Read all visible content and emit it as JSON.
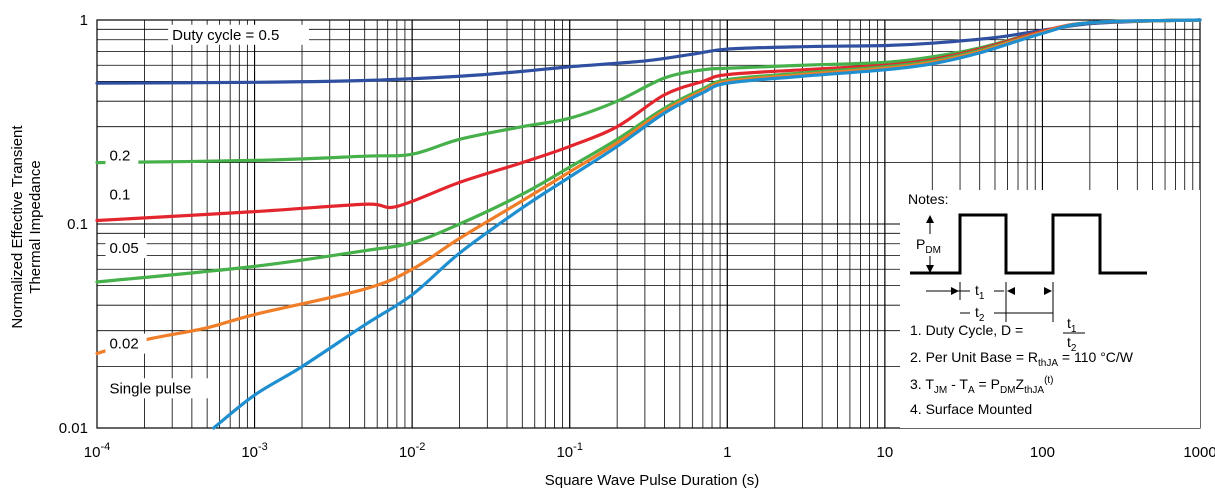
{
  "chart_data": {
    "type": "line",
    "xscale": "log",
    "yscale": "log",
    "xlim": [
      0.0001,
      1000
    ],
    "ylim": [
      0.01,
      1
    ],
    "grid": true,
    "xlabel": "Square Wave Pulse Duration (s)",
    "ylabel_lines": [
      "Normalized Effective Transient",
      "Thermal Impedance"
    ],
    "x_ticks": [
      {
        "value": 0.0001,
        "base": "10",
        "exp": "-4"
      },
      {
        "value": 0.001,
        "base": "10",
        "exp": "-3"
      },
      {
        "value": 0.01,
        "base": "10",
        "exp": "-2"
      },
      {
        "value": 0.1,
        "base": "10",
        "exp": "-1"
      },
      {
        "value": 1,
        "base": "1",
        "exp": ""
      },
      {
        "value": 10,
        "base": "10",
        "exp": ""
      },
      {
        "value": 100,
        "base": "100",
        "exp": ""
      },
      {
        "value": 1000,
        "base": "1000",
        "exp": ""
      }
    ],
    "y_ticks": [
      {
        "value": 1,
        "label": "1"
      },
      {
        "value": 0.1,
        "label": "0.1"
      },
      {
        "value": 0.01,
        "label": "0.01"
      }
    ],
    "series": [
      {
        "name": "Duty cycle = 0.5",
        "color": "#2f4fa0",
        "label_at": {
          "x": 0.0003,
          "y": 0.8
        },
        "points": [
          [
            0.0001,
            0.49
          ],
          [
            0.001,
            0.495
          ],
          [
            0.005,
            0.505
          ],
          [
            0.02,
            0.53
          ],
          [
            0.05,
            0.56
          ],
          [
            0.1,
            0.59
          ],
          [
            0.3,
            0.63
          ],
          [
            0.6,
            0.68
          ],
          [
            1,
            0.72
          ],
          [
            3,
            0.74
          ],
          [
            10,
            0.75
          ],
          [
            20,
            0.77
          ],
          [
            50,
            0.82
          ],
          [
            100,
            0.89
          ],
          [
            200,
            0.96
          ],
          [
            500,
            0.99
          ],
          [
            1000,
            1.0
          ]
        ]
      },
      {
        "name": "0.2",
        "color": "#46b04a",
        "label_at": {
          "x": 0.00012,
          "y": 0.205
        },
        "points": [
          [
            0.0001,
            0.2
          ],
          [
            0.001,
            0.205
          ],
          [
            0.005,
            0.215
          ],
          [
            0.01,
            0.22
          ],
          [
            0.02,
            0.26
          ],
          [
            0.05,
            0.3
          ],
          [
            0.1,
            0.33
          ],
          [
            0.2,
            0.4
          ],
          [
            0.4,
            0.52
          ],
          [
            0.7,
            0.57
          ],
          [
            1,
            0.58
          ],
          [
            3,
            0.6
          ],
          [
            10,
            0.62
          ],
          [
            20,
            0.66
          ],
          [
            40,
            0.73
          ],
          [
            100,
            0.88
          ],
          [
            200,
            0.97
          ],
          [
            500,
            0.99
          ],
          [
            1000,
            1.0
          ]
        ]
      },
      {
        "name": "0.1",
        "color": "#e3262e",
        "label_at": {
          "x": 0.00012,
          "y": 0.132
        },
        "points": [
          [
            0.0001,
            0.104
          ],
          [
            0.001,
            0.115
          ],
          [
            0.005,
            0.125
          ],
          [
            0.008,
            0.122
          ],
          [
            0.02,
            0.16
          ],
          [
            0.05,
            0.2
          ],
          [
            0.1,
            0.24
          ],
          [
            0.2,
            0.3
          ],
          [
            0.4,
            0.43
          ],
          [
            0.7,
            0.5
          ],
          [
            1,
            0.54
          ],
          [
            3,
            0.57
          ],
          [
            10,
            0.6
          ],
          [
            20,
            0.64
          ],
          [
            40,
            0.72
          ],
          [
            100,
            0.88
          ],
          [
            200,
            0.97
          ],
          [
            1000,
            1.0
          ]
        ]
      },
      {
        "name": "0.05",
        "color": "#46b04a",
        "label_at": {
          "x": 0.00012,
          "y": 0.072
        },
        "points": [
          [
            0.0001,
            0.052
          ],
          [
            0.001,
            0.062
          ],
          [
            0.005,
            0.074
          ],
          [
            0.01,
            0.081
          ],
          [
            0.02,
            0.1
          ],
          [
            0.05,
            0.14
          ],
          [
            0.1,
            0.19
          ],
          [
            0.2,
            0.26
          ],
          [
            0.4,
            0.37
          ],
          [
            0.7,
            0.46
          ],
          [
            1,
            0.51
          ],
          [
            3,
            0.55
          ],
          [
            10,
            0.59
          ],
          [
            20,
            0.63
          ],
          [
            40,
            0.71
          ],
          [
            100,
            0.87
          ],
          [
            200,
            0.97
          ],
          [
            1000,
            1.0
          ]
        ]
      },
      {
        "name": "0.02",
        "color": "#f07d28",
        "label_at": {
          "x": 0.00012,
          "y": 0.0245
        },
        "points": [
          [
            0.0001,
            0.0232
          ],
          [
            0.0002,
            0.027
          ],
          [
            0.0005,
            0.031
          ],
          [
            0.001,
            0.036
          ],
          [
            0.005,
            0.048
          ],
          [
            0.01,
            0.06
          ],
          [
            0.02,
            0.085
          ],
          [
            0.05,
            0.13
          ],
          [
            0.1,
            0.18
          ],
          [
            0.2,
            0.25
          ],
          [
            0.4,
            0.36
          ],
          [
            0.7,
            0.45
          ],
          [
            1,
            0.5
          ],
          [
            3,
            0.54
          ],
          [
            10,
            0.58
          ],
          [
            20,
            0.62
          ],
          [
            40,
            0.7
          ],
          [
            100,
            0.87
          ],
          [
            200,
            0.97
          ],
          [
            1000,
            1.0
          ]
        ]
      },
      {
        "name": "Single pulse",
        "color": "#1f8fd0",
        "label_at": {
          "x": 0.00012,
          "y": 0.0148
        },
        "points": [
          [
            0.00055,
            0.01
          ],
          [
            0.001,
            0.0145
          ],
          [
            0.002,
            0.02
          ],
          [
            0.005,
            0.032
          ],
          [
            0.01,
            0.045
          ],
          [
            0.02,
            0.072
          ],
          [
            0.05,
            0.12
          ],
          [
            0.1,
            0.17
          ],
          [
            0.2,
            0.24
          ],
          [
            0.4,
            0.35
          ],
          [
            0.7,
            0.44
          ],
          [
            1,
            0.49
          ],
          [
            3,
            0.53
          ],
          [
            10,
            0.57
          ],
          [
            20,
            0.61
          ],
          [
            40,
            0.69
          ],
          [
            100,
            0.86
          ],
          [
            200,
            0.97
          ],
          [
            1000,
            1.0
          ]
        ]
      }
    ]
  },
  "notes": {
    "title": "Notes:",
    "pdm": {
      "base": "P",
      "sub": "DM"
    },
    "t1": {
      "base": "t",
      "sub": "1"
    },
    "t2": {
      "base": "t",
      "sub": "2"
    },
    "item1": {
      "text": "1. Duty Cycle, D = ",
      "num": "t",
      "num_sub": "1",
      "den": "t",
      "den_sub": "2"
    },
    "item2": {
      "pre": "2. Per Unit Base = R",
      "sub": "thJA",
      "post": " = 110 °C/W"
    },
    "item3": {
      "p1": "3. T",
      "s1": "JM",
      "p2": " - T",
      "s2": "A",
      "p3": " = P",
      "s3": "DM",
      "p4": "Z",
      "s4": "thJA",
      "sup": "(t)"
    },
    "item4": "4. Surface Mounted"
  }
}
